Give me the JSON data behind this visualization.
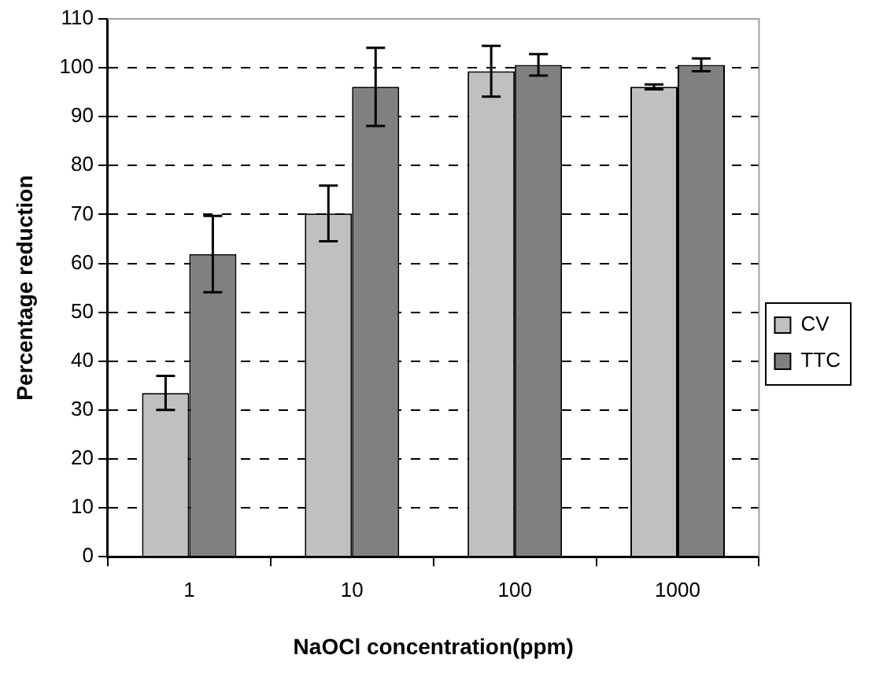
{
  "chart_data": {
    "type": "bar",
    "xlabel": "NaOCl concentration(ppm)",
    "ylabel": "Percentage reduction",
    "categories": [
      "1",
      "10",
      "100",
      "1000"
    ],
    "series": [
      {
        "name": "CV",
        "color": "#c0c0c0",
        "values": [
          33.5,
          70.2,
          99.3,
          96.1
        ],
        "errors": [
          3.5,
          5.7,
          5.2,
          0.5
        ]
      },
      {
        "name": "TTC",
        "color": "#808080",
        "values": [
          61.9,
          96.1,
          100.6,
          100.6
        ],
        "errors": [
          7.8,
          8,
          2.2,
          1.3
        ]
      }
    ],
    "ylim": [
      0,
      110
    ],
    "yticks": [
      0,
      10,
      20,
      30,
      40,
      50,
      60,
      70,
      80,
      90,
      100,
      110
    ],
    "grid": "y",
    "legend": "right"
  }
}
